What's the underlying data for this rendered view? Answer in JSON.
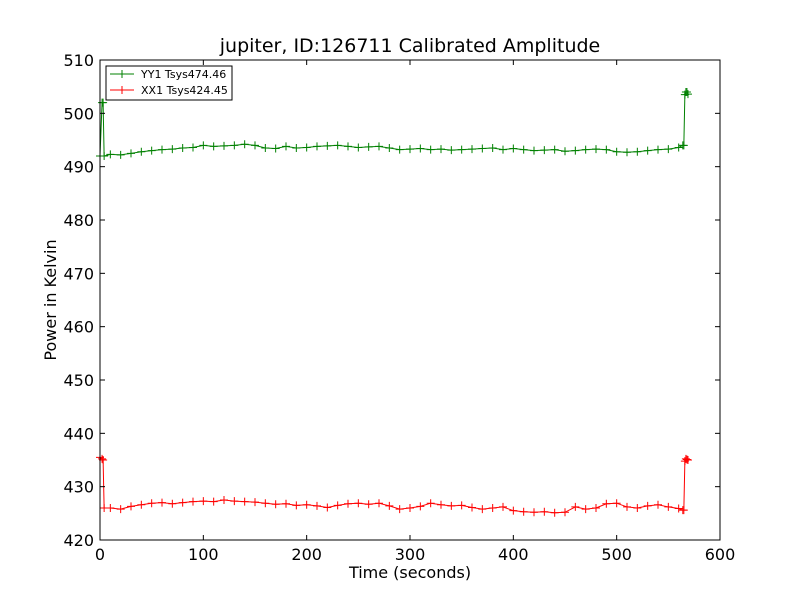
{
  "chart_data": {
    "type": "line",
    "title": "jupiter, ID:126711 Calibrated Amplitude",
    "xlabel": "Time (seconds)",
    "ylabel": "Power in Kelvin",
    "xlim": [
      0,
      600
    ],
    "ylim": [
      420,
      510
    ],
    "x_ticks": [
      0,
      100,
      200,
      300,
      400,
      500,
      600
    ],
    "y_ticks": [
      420,
      430,
      440,
      450,
      460,
      470,
      480,
      490,
      500,
      510
    ],
    "x_tick_labels": [
      "0",
      "100",
      "200",
      "300",
      "400",
      "500",
      "600"
    ],
    "y_tick_labels": [
      "420",
      "430",
      "440",
      "450",
      "460",
      "470",
      "480",
      "490",
      "500",
      "510"
    ],
    "grid": false,
    "legend_placement": "top-left",
    "marker": "plus",
    "series": [
      {
        "name": "YY1 Tsys474.46",
        "color": "#008000",
        "x": [
          0,
          2,
          3,
          4,
          10,
          20,
          30,
          40,
          50,
          60,
          70,
          80,
          90,
          100,
          110,
          120,
          130,
          140,
          150,
          160,
          170,
          180,
          190,
          200,
          210,
          220,
          230,
          240,
          250,
          260,
          270,
          280,
          290,
          300,
          310,
          320,
          330,
          340,
          350,
          360,
          370,
          380,
          390,
          400,
          410,
          420,
          430,
          440,
          450,
          460,
          470,
          480,
          490,
          500,
          510,
          520,
          530,
          540,
          550,
          560,
          564,
          565,
          566,
          567,
          568,
          569
        ],
        "y": [
          492,
          502,
          502,
          492,
          492.3,
          492.2,
          492.5,
          492.8,
          493,
          493.2,
          493.3,
          493.5,
          493.6,
          494,
          493.8,
          493.9,
          494,
          494.2,
          494,
          493.5,
          493.4,
          493.8,
          493.5,
          493.6,
          493.8,
          493.9,
          494,
          493.8,
          493.6,
          493.7,
          493.8,
          493.5,
          493.2,
          493.3,
          493.4,
          493.2,
          493.3,
          493.1,
          493.2,
          493.3,
          493.4,
          493.5,
          493.2,
          493.4,
          493.2,
          493,
          493.1,
          493.2,
          492.9,
          493,
          493.2,
          493.3,
          493.2,
          492.8,
          492.7,
          492.8,
          493,
          493.2,
          493.3,
          493.6,
          494,
          494,
          503.5,
          504,
          504,
          503.6
        ]
      },
      {
        "name": "XX1 Tsys424.45",
        "color": "#ff0000",
        "x": [
          0,
          2,
          3,
          4,
          10,
          20,
          30,
          40,
          50,
          60,
          70,
          80,
          90,
          100,
          110,
          120,
          130,
          140,
          150,
          160,
          170,
          180,
          190,
          200,
          210,
          220,
          230,
          240,
          250,
          260,
          270,
          280,
          290,
          300,
          310,
          320,
          330,
          340,
          350,
          360,
          370,
          380,
          390,
          400,
          410,
          420,
          430,
          440,
          450,
          460,
          470,
          480,
          490,
          500,
          510,
          520,
          530,
          540,
          550,
          560,
          564,
          565,
          566,
          567,
          568,
          569
        ],
        "y": [
          435.5,
          435.2,
          435,
          426,
          426,
          425.8,
          426.3,
          426.6,
          426.9,
          427,
          426.8,
          427,
          427.2,
          427.3,
          427.2,
          427.5,
          427.3,
          427.2,
          427.1,
          426.9,
          426.7,
          426.8,
          426.5,
          426.6,
          426.4,
          426.1,
          426.5,
          426.8,
          426.9,
          426.7,
          426.9,
          426.4,
          425.8,
          426,
          426.3,
          426.9,
          426.6,
          426.4,
          426.5,
          426.1,
          425.8,
          426,
          426.2,
          425.5,
          425.3,
          425.2,
          425.3,
          425.1,
          425.2,
          426.2,
          425.8,
          426,
          426.8,
          426.9,
          426.2,
          426,
          426.4,
          426.6,
          426.2,
          425.9,
          425.6,
          425.6,
          434.8,
          435.2,
          435.1,
          435
        ]
      }
    ]
  }
}
